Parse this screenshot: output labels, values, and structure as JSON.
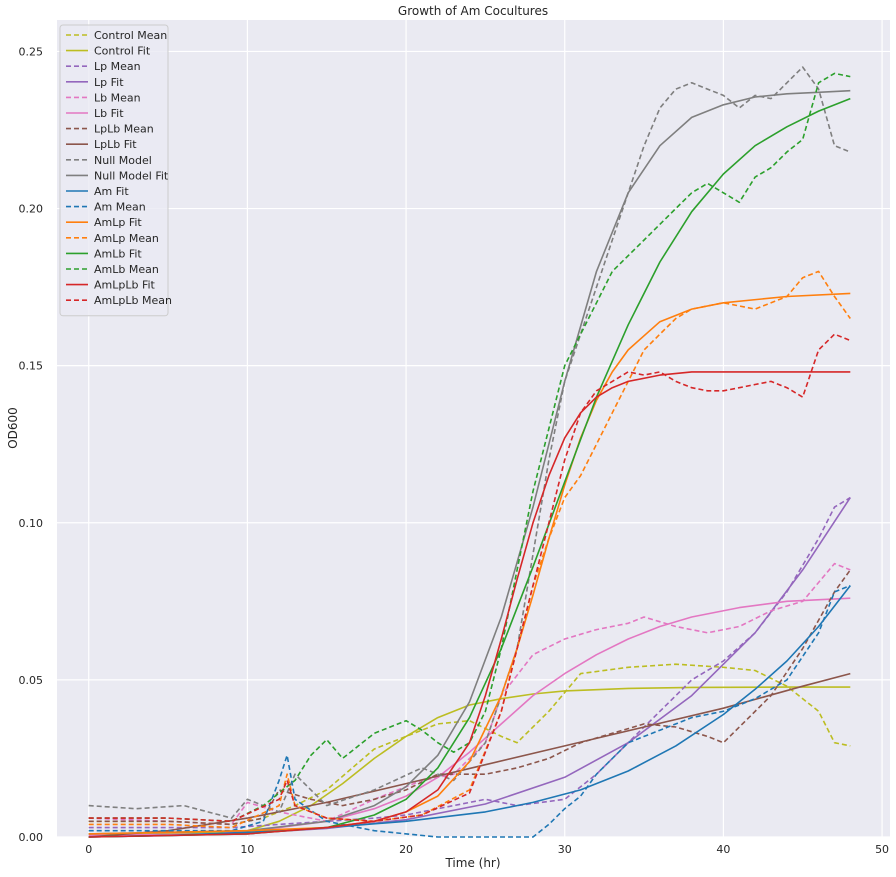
{
  "chart_data": {
    "type": "line",
    "title": "Growth of Am Cocultures",
    "xlabel": "Time (hr)",
    "ylabel": "OD600",
    "xlim": [
      -2,
      50.5
    ],
    "ylim": [
      0,
      0.26
    ],
    "xticks": [
      0,
      10,
      20,
      30,
      40,
      50
    ],
    "xtick_labels": [
      "0",
      "10",
      "20",
      "30",
      "40",
      "50"
    ],
    "yticks": [
      0,
      0.05,
      0.1,
      0.15,
      0.2,
      0.25
    ],
    "ytick_labels": [
      "0.00",
      "0.05",
      "0.10",
      "0.15",
      "0.20",
      "0.25"
    ],
    "grid": true,
    "legend_position": "top-left",
    "series": [
      {
        "name": "Control Mean",
        "color": "#bcbd22",
        "style": "dashed",
        "x": [
          0,
          5,
          9,
          11,
          13,
          15,
          18,
          20,
          22,
          24,
          26,
          27,
          29,
          31,
          34,
          37,
          40,
          42,
          44,
          46,
          47,
          48
        ],
        "y": [
          0.005,
          0.005,
          0.004,
          0.006,
          0.01,
          0.015,
          0.028,
          0.032,
          0.036,
          0.037,
          0.032,
          0.03,
          0.04,
          0.052,
          0.054,
          0.055,
          0.054,
          0.053,
          0.048,
          0.04,
          0.03,
          0.029
        ]
      },
      {
        "name": "Control Fit",
        "color": "#bcbd22",
        "style": "solid",
        "x": [
          0,
          6,
          10,
          12,
          14,
          16,
          18,
          20,
          22,
          24,
          26,
          28,
          30,
          34,
          38,
          44,
          48
        ],
        "y": [
          0.001,
          0.0012,
          0.002,
          0.005,
          0.01,
          0.017,
          0.025,
          0.032,
          0.038,
          0.042,
          0.044,
          0.0455,
          0.0465,
          0.0473,
          0.0476,
          0.0477,
          0.0477
        ]
      },
      {
        "name": "Lp Mean",
        "color": "#9467bd",
        "style": "dashed",
        "x": [
          0,
          5,
          9,
          12,
          15,
          18,
          20,
          22,
          25,
          27,
          30,
          32,
          34,
          36,
          38,
          40,
          42,
          44,
          46,
          47,
          48
        ],
        "y": [
          0.003,
          0.003,
          0.003,
          0.004,
          0.005,
          0.006,
          0.007,
          0.009,
          0.012,
          0.01,
          0.012,
          0.02,
          0.03,
          0.04,
          0.05,
          0.056,
          0.065,
          0.078,
          0.095,
          0.105,
          0.108
        ]
      },
      {
        "name": "Lp Fit",
        "color": "#9467bd",
        "style": "solid",
        "x": [
          0,
          5,
          10,
          15,
          20,
          25,
          30,
          34,
          38,
          42,
          45,
          48
        ],
        "y": [
          0.0,
          0.0004,
          0.0012,
          0.0027,
          0.0055,
          0.0105,
          0.019,
          0.03,
          0.045,
          0.065,
          0.085,
          0.108
        ]
      },
      {
        "name": "Lb Mean",
        "color": "#e377c2",
        "style": "dashed",
        "x": [
          0,
          5,
          9,
          10,
          12,
          15,
          18,
          21,
          23,
          25,
          26,
          28,
          30,
          32,
          34,
          35,
          37,
          39,
          41,
          43,
          45,
          47,
          48
        ],
        "y": [
          0.006,
          0.005,
          0.004,
          0.011,
          0.008,
          0.005,
          0.012,
          0.018,
          0.02,
          0.03,
          0.045,
          0.058,
          0.063,
          0.066,
          0.068,
          0.07,
          0.067,
          0.065,
          0.067,
          0.072,
          0.075,
          0.087,
          0.085
        ]
      },
      {
        "name": "Lb Fit",
        "color": "#e377c2",
        "style": "solid",
        "x": [
          0,
          8,
          12,
          15,
          18,
          20,
          22,
          24,
          26,
          28,
          30,
          32,
          34,
          36,
          38,
          41,
          44,
          48
        ],
        "y": [
          0.0005,
          0.001,
          0.003,
          0.005,
          0.009,
          0.013,
          0.019,
          0.027,
          0.036,
          0.045,
          0.052,
          0.058,
          0.063,
          0.067,
          0.07,
          0.073,
          0.075,
          0.076
        ]
      },
      {
        "name": "LpLb Mean",
        "color": "#8c564b",
        "style": "dashed",
        "x": [
          0,
          5,
          9,
          11,
          12,
          14,
          16,
          18,
          20,
          22,
          25,
          27,
          29,
          31,
          33,
          35,
          37,
          39,
          40,
          41,
          43,
          45,
          47,
          48
        ],
        "y": [
          0.005,
          0.005,
          0.004,
          0.006,
          0.015,
          0.012,
          0.01,
          0.012,
          0.015,
          0.02,
          0.02,
          0.022,
          0.025,
          0.03,
          0.033,
          0.036,
          0.035,
          0.032,
          0.03,
          0.035,
          0.045,
          0.06,
          0.078,
          0.085
        ]
      },
      {
        "name": "LpLb Fit",
        "color": "#8c564b",
        "style": "solid",
        "x": [
          0,
          5,
          10,
          15,
          20,
          25,
          30,
          35,
          40,
          45,
          48
        ],
        "y": [
          0.0,
          0.002,
          0.006,
          0.011,
          0.017,
          0.023,
          0.029,
          0.035,
          0.041,
          0.048,
          0.052
        ]
      },
      {
        "name": "Null Model",
        "color": "#7f7f7f",
        "style": "dashed",
        "x": [
          0,
          3,
          6,
          9,
          10,
          12,
          13,
          15,
          18,
          21,
          23,
          25,
          27,
          28,
          29,
          30,
          31,
          32,
          33,
          34,
          35,
          36,
          37,
          38,
          39,
          40,
          41,
          42,
          43,
          44,
          45,
          46,
          47,
          48
        ],
        "y": [
          0.01,
          0.009,
          0.01,
          0.006,
          0.012,
          0.008,
          0.02,
          0.01,
          0.015,
          0.022,
          0.018,
          0.03,
          0.06,
          0.09,
          0.12,
          0.145,
          0.16,
          0.175,
          0.19,
          0.205,
          0.22,
          0.232,
          0.238,
          0.24,
          0.238,
          0.236,
          0.232,
          0.236,
          0.235,
          0.24,
          0.245,
          0.238,
          0.22,
          0.218
        ]
      },
      {
        "name": "Null Model Fit",
        "color": "#7f7f7f",
        "style": "solid",
        "x": [
          0,
          10,
          15,
          18,
          20,
          22,
          24,
          26,
          28,
          30,
          32,
          34,
          36,
          38,
          40,
          42,
          44,
          46,
          48
        ],
        "y": [
          0.001,
          0.002,
          0.005,
          0.01,
          0.016,
          0.026,
          0.043,
          0.07,
          0.105,
          0.145,
          0.18,
          0.205,
          0.22,
          0.229,
          0.233,
          0.2355,
          0.2365,
          0.237,
          0.2375
        ]
      },
      {
        "name": "Am Fit",
        "color": "#1f77b4",
        "style": "solid",
        "x": [
          0,
          5,
          10,
          15,
          20,
          25,
          28,
          31,
          34,
          37,
          40,
          42,
          44,
          46,
          48
        ],
        "y": [
          0.0,
          0.0005,
          0.0015,
          0.003,
          0.005,
          0.008,
          0.011,
          0.015,
          0.021,
          0.029,
          0.039,
          0.047,
          0.056,
          0.067,
          0.08
        ]
      },
      {
        "name": "Am Mean",
        "color": "#1f77b4",
        "style": "dashed",
        "x": [
          0,
          5,
          9,
          11,
          12,
          12.5,
          13,
          15,
          18,
          22,
          25,
          28,
          29,
          30,
          31,
          32,
          34,
          36,
          38,
          40,
          42,
          44,
          46,
          47,
          48
        ],
        "y": [
          0.002,
          0.002,
          0.002,
          0.005,
          0.018,
          0.026,
          0.012,
          0.005,
          0.002,
          0.0,
          0.0,
          0.0,
          0.004,
          0.009,
          0.013,
          0.02,
          0.03,
          0.034,
          0.038,
          0.04,
          0.044,
          0.05,
          0.065,
          0.078,
          0.08
        ]
      },
      {
        "name": "AmLp Fit",
        "color": "#ff7f0e",
        "style": "solid",
        "x": [
          0,
          10,
          15,
          18,
          20,
          22,
          24,
          26,
          27,
          28,
          29,
          30,
          31,
          32,
          33,
          34,
          36,
          38,
          40,
          44,
          48
        ],
        "y": [
          0.001,
          0.002,
          0.003,
          0.005,
          0.008,
          0.013,
          0.024,
          0.045,
          0.06,
          0.077,
          0.095,
          0.112,
          0.127,
          0.139,
          0.148,
          0.155,
          0.164,
          0.168,
          0.17,
          0.172,
          0.173
        ]
      },
      {
        "name": "AmLp Mean",
        "color": "#ff7f0e",
        "style": "dashed",
        "x": [
          0,
          5,
          9,
          12,
          12.5,
          13,
          15,
          18,
          21,
          24,
          26,
          27,
          28,
          29,
          30,
          31,
          32,
          33,
          34,
          35,
          36,
          37,
          38,
          40,
          42,
          44,
          45,
          46,
          47,
          48
        ],
        "y": [
          0.004,
          0.004,
          0.003,
          0.01,
          0.02,
          0.01,
          0.006,
          0.005,
          0.007,
          0.015,
          0.04,
          0.06,
          0.08,
          0.095,
          0.108,
          0.115,
          0.125,
          0.135,
          0.145,
          0.155,
          0.16,
          0.165,
          0.168,
          0.17,
          0.168,
          0.172,
          0.178,
          0.18,
          0.172,
          0.165
        ]
      },
      {
        "name": "AmLb Fit",
        "color": "#2ca02c",
        "style": "solid",
        "x": [
          0,
          10,
          15,
          18,
          20,
          22,
          24,
          26,
          28,
          30,
          32,
          34,
          36,
          38,
          40,
          42,
          44,
          46,
          48
        ],
        "y": [
          0.0,
          0.001,
          0.003,
          0.007,
          0.012,
          0.022,
          0.038,
          0.06,
          0.086,
          0.113,
          0.14,
          0.163,
          0.183,
          0.199,
          0.211,
          0.22,
          0.226,
          0.231,
          0.235
        ]
      },
      {
        "name": "AmLb Mean",
        "color": "#2ca02c",
        "style": "dashed",
        "x": [
          0,
          5,
          9,
          11,
          12,
          13,
          14,
          15,
          16,
          18,
          19,
          20,
          21,
          22,
          23,
          24,
          25,
          26,
          27,
          28,
          29,
          30,
          31,
          32,
          33,
          34,
          35,
          36,
          37,
          38,
          39,
          40,
          41,
          42,
          43,
          44,
          45,
          46,
          47,
          48
        ],
        "y": [
          0.006,
          0.006,
          0.005,
          0.01,
          0.014,
          0.018,
          0.026,
          0.031,
          0.025,
          0.033,
          0.035,
          0.037,
          0.034,
          0.03,
          0.027,
          0.03,
          0.04,
          0.06,
          0.085,
          0.11,
          0.13,
          0.15,
          0.16,
          0.17,
          0.18,
          0.185,
          0.19,
          0.195,
          0.2,
          0.205,
          0.208,
          0.205,
          0.202,
          0.21,
          0.213,
          0.218,
          0.222,
          0.24,
          0.243,
          0.242
        ]
      },
      {
        "name": "AmLpLb Fit",
        "color": "#d62728",
        "style": "solid",
        "x": [
          0,
          10,
          15,
          18,
          20,
          22,
          24,
          25,
          26,
          27,
          28,
          29,
          30,
          31,
          32,
          33,
          34,
          36,
          38,
          40,
          44,
          48
        ],
        "y": [
          0.0,
          0.001,
          0.003,
          0.005,
          0.008,
          0.015,
          0.03,
          0.045,
          0.063,
          0.082,
          0.1,
          0.115,
          0.127,
          0.135,
          0.14,
          0.143,
          0.145,
          0.147,
          0.148,
          0.148,
          0.148,
          0.148
        ]
      },
      {
        "name": "AmLpLb Mean",
        "color": "#d62728",
        "style": "dashed",
        "x": [
          0,
          5,
          9,
          12,
          12.5,
          13,
          15,
          18,
          21,
          24,
          26,
          27,
          28,
          29,
          30,
          31,
          32,
          33,
          34,
          35,
          36,
          37,
          38,
          39,
          40,
          41,
          42,
          43,
          44,
          45,
          46,
          47,
          48
        ],
        "y": [
          0.006,
          0.006,
          0.005,
          0.012,
          0.018,
          0.01,
          0.006,
          0.005,
          0.007,
          0.014,
          0.04,
          0.06,
          0.08,
          0.1,
          0.12,
          0.135,
          0.142,
          0.145,
          0.148,
          0.147,
          0.148,
          0.145,
          0.143,
          0.142,
          0.142,
          0.143,
          0.144,
          0.145,
          0.143,
          0.14,
          0.155,
          0.16,
          0.158
        ]
      }
    ]
  }
}
